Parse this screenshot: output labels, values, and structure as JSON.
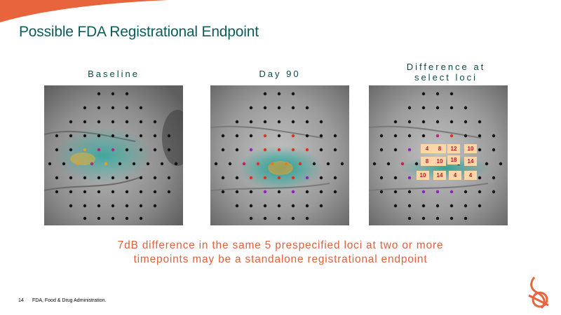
{
  "slide": {
    "title": "Possible FDA Registrational Endpoint",
    "page_number": "14",
    "footnote": "FDA, Food & Drug Administration.",
    "caption_line1": "7dB difference in the same 5 prespecified loci at two or more",
    "caption_line2": "timepoints may be a standalone registrational endpoint"
  },
  "panels": [
    {
      "label": "Baseline"
    },
    {
      "label": "Day 90"
    },
    {
      "label_line1": "Difference at",
      "label_line2": "select loci"
    }
  ],
  "difference_values": [
    "4",
    "8",
    "12",
    "10",
    "8",
    "10",
    "18",
    "14",
    "10",
    "14",
    "4",
    "4"
  ],
  "colors": {
    "title": "#0b5c5a",
    "caption": "#e0613d",
    "value_box": "#fdd7a7",
    "value_text": "#c0162a",
    "accent": "#e8643c"
  },
  "icons": {
    "logo": "company-logo-icon"
  }
}
